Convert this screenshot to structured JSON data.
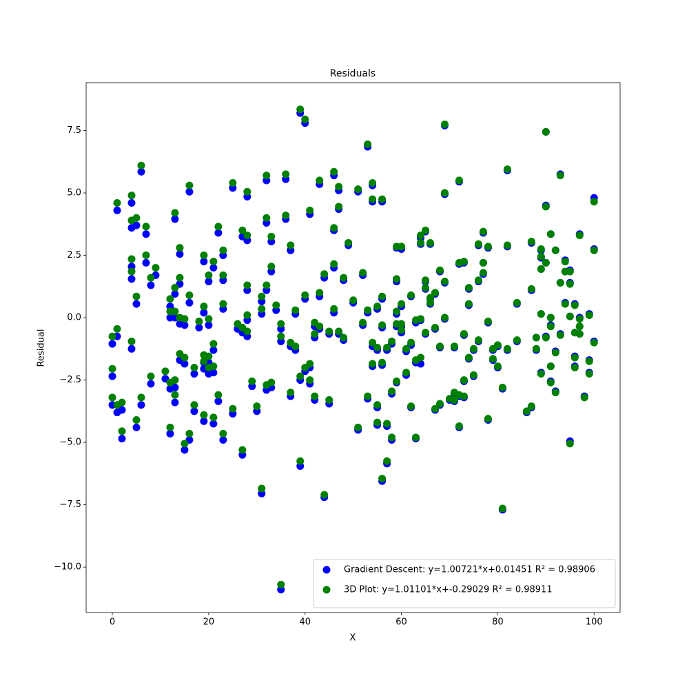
{
  "chart_data": {
    "type": "scatter",
    "title": "Residuals",
    "x_label": "X",
    "y_label": "Residual",
    "xlim": [
      -5.44,
      105.4
    ],
    "ylim": [
      -11.82,
      9.42
    ],
    "xticks": [
      0,
      20,
      40,
      60,
      80,
      100
    ],
    "yticks": [
      {
        "value": -10,
        "label": "−10.0"
      },
      {
        "value": -7.5,
        "label": "−7.5"
      },
      {
        "value": -5,
        "label": "−5.0"
      },
      {
        "value": -2.5,
        "label": "−2.5"
      },
      {
        "value": 0,
        "label": "0.0"
      },
      2.5,
      {
        "value": 5,
        "label": "5.0"
      },
      7.5
    ],
    "legend": "lower right",
    "x": [
      0,
      0,
      0,
      1,
      1,
      1,
      2,
      2,
      4,
      4,
      4,
      4,
      4,
      5,
      5,
      5,
      6,
      6,
      7,
      7,
      8,
      8,
      9,
      11,
      12,
      12,
      12,
      12,
      13,
      13,
      13,
      13,
      13,
      14,
      14,
      14,
      14,
      15,
      15,
      15,
      16,
      16,
      16,
      17,
      17,
      18,
      19,
      19,
      19,
      19,
      19,
      20,
      20,
      20,
      20,
      21,
      21,
      21,
      21,
      22,
      22,
      23,
      23,
      23,
      23,
      25,
      25,
      26,
      27,
      27,
      27,
      28,
      28,
      28,
      28,
      28,
      29,
      30,
      31,
      31,
      31,
      32,
      32,
      32,
      32,
      33,
      33,
      33,
      34,
      35,
      35,
      35,
      36,
      36,
      37,
      37,
      37,
      38,
      38,
      39,
      39,
      39,
      40,
      40,
      40,
      41,
      41,
      41,
      42,
      42,
      42,
      43,
      43,
      43,
      44,
      44,
      45,
      45,
      46,
      46,
      46,
      46,
      47,
      47,
      47,
      48,
      48,
      49,
      50,
      51,
      51,
      52,
      52,
      53,
      53,
      53,
      54,
      54,
      54,
      54,
      55,
      55,
      55,
      55,
      56,
      56,
      56,
      56,
      56,
      57,
      57,
      57,
      58,
      58,
      58,
      59,
      59,
      59,
      59,
      59,
      60,
      60,
      60,
      60,
      61,
      61,
      62,
      62,
      62,
      63,
      63,
      63,
      64,
      64,
      64,
      64,
      65,
      65,
      65,
      65,
      66,
      66,
      66,
      67,
      67,
      67,
      68,
      68,
      68,
      69,
      69,
      69,
      69,
      70,
      71,
      71,
      71,
      72,
      72,
      72,
      72,
      73,
      73,
      73,
      73,
      74,
      74,
      74,
      75,
      75,
      76,
      76,
      76,
      77,
      77,
      77,
      78,
      78,
      78,
      79,
      79,
      80,
      80,
      81,
      81,
      82,
      82,
      82,
      84,
      84,
      86,
      87,
      87,
      87,
      88,
      88,
      89,
      89,
      89,
      89,
      89,
      90,
      90,
      90,
      90,
      91,
      91,
      91,
      91,
      91,
      92,
      92,
      92,
      93,
      93,
      93,
      94,
      94,
      94,
      95,
      95,
      95,
      95,
      96,
      96,
      96,
      96,
      97,
      97,
      97,
      97,
      98,
      99,
      99,
      99,
      100,
      100,
      100
    ],
    "series": [
      {
        "name": "Gradient Descent: y=1.00721*x+0.01451 R² = 0.98906",
        "color": "#0000ff",
        "values": [
          -1.05,
          -2.35,
          -3.5,
          4.3,
          -0.75,
          -3.8,
          -3.7,
          -4.85,
          4.6,
          3.6,
          2.05,
          1.55,
          -1.25,
          3.7,
          0.55,
          -4.4,
          5.85,
          -3.5,
          3.35,
          2.2,
          1.3,
          -2.65,
          1.7,
          -2.45,
          0.45,
          0.0,
          -2.85,
          -4.65,
          3.95,
          0.95,
          0.0,
          -2.8,
          -3.4,
          2.55,
          1.35,
          -0.25,
          -1.7,
          -0.3,
          -1.85,
          -5.3,
          5.05,
          0.6,
          -4.9,
          -2.25,
          -3.75,
          -0.4,
          2.25,
          0.2,
          -1.8,
          -2.05,
          -4.15,
          1.45,
          -0.3,
          -2.25,
          -1.8,
          2.0,
          -1.3,
          -2.2,
          -4.25,
          3.4,
          -3.35,
          2.5,
          1.5,
          0.35,
          -4.9,
          5.2,
          -3.85,
          -0.45,
          3.25,
          -0.6,
          -5.5,
          4.85,
          3.1,
          1.1,
          -0.1,
          -0.75,
          -2.75,
          -3.75,
          0.65,
          0.15,
          -7.05,
          5.5,
          3.8,
          1.1,
          -2.9,
          3.05,
          1.85,
          -2.8,
          0.3,
          -0.45,
          -0.95,
          -10.9,
          5.55,
          3.95,
          2.7,
          -1.15,
          -3.15,
          0.15,
          -1.3,
          8.2,
          -2.5,
          -5.95,
          7.8,
          0.75,
          -2.15,
          4.15,
          -2.0,
          -2.65,
          -0.35,
          -0.8,
          -3.3,
          5.35,
          0.85,
          -0.45,
          1.6,
          -7.2,
          -0.65,
          -3.45,
          5.7,
          3.5,
          2.0,
          0.2,
          5.1,
          4.35,
          -0.65,
          1.5,
          -0.9,
          2.9,
          0.6,
          5.05,
          -4.5,
          1.7,
          -0.3,
          6.85,
          0.2,
          -3.25,
          5.3,
          4.65,
          -1.15,
          -1.95,
          0.35,
          -1.3,
          -3.6,
          -4.3,
          4.65,
          0.75,
          -0.4,
          -1.9,
          -6.55,
          -1.3,
          -4.35,
          -5.85,
          -1.05,
          -3.05,
          -4.9,
          2.8,
          1.45,
          0.15,
          -0.35,
          -2.6,
          2.75,
          0.45,
          -0.35,
          -0.6,
          -1.35,
          -2.3,
          0.85,
          -1.1,
          -3.6,
          -0.2,
          -1.8,
          -4.85,
          3.2,
          2.95,
          -0.1,
          -1.85,
          3.45,
          1.45,
          1.15,
          -0.65,
          2.95,
          0.75,
          0.55,
          0.95,
          -0.45,
          -3.7,
          1.85,
          -1.2,
          -3.5,
          7.7,
          4.95,
          1.4,
          -0.05,
          -3.3,
          -1.2,
          -3.05,
          -3.35,
          5.45,
          2.15,
          -3.15,
          -4.4,
          2.2,
          -0.7,
          -2.55,
          -3.2,
          1.15,
          0.5,
          -1.65,
          -1.3,
          -2.35,
          2.9,
          1.45,
          -0.95,
          3.4,
          2.2,
          1.75,
          2.8,
          -0.2,
          -4.1,
          -1.3,
          -1.7,
          -1.15,
          -2.0,
          -2.85,
          -7.7,
          5.9,
          2.85,
          -1.3,
          0.55,
          -0.95,
          -3.8,
          3.0,
          1.1,
          -3.6,
          -0.8,
          -1.3,
          2.7,
          2.4,
          1.95,
          0.15,
          -2.2,
          7.45,
          4.5,
          2.2,
          -0.75,
          3.35,
          0.0,
          -0.3,
          -1.95,
          -2.55,
          2.7,
          -1.35,
          -2.95,
          5.75,
          1.4,
          -0.65,
          2.3,
          1.85,
          0.6,
          1.9,
          1.4,
          0.05,
          -4.95,
          0.55,
          -0.6,
          -1.55,
          -1.95,
          3.35,
          0.0,
          -0.35,
          -0.65,
          -3.15,
          0.15,
          -1.7,
          -2.2,
          4.8,
          2.75,
          -0.95
        ]
      },
      {
        "name": "3D Plot: y=1.01101*x+-0.29029 R² = 0.98911",
        "color": "#008000",
        "values": [
          -0.75,
          -2.05,
          -3.2,
          4.6,
          -0.45,
          -3.5,
          -3.4,
          -4.55,
          4.9,
          3.9,
          2.35,
          1.85,
          -0.95,
          4.0,
          0.85,
          -4.1,
          6.1,
          -3.2,
          3.65,
          2.5,
          1.6,
          -2.35,
          2.0,
          -2.15,
          0.75,
          0.25,
          -2.6,
          -4.4,
          4.2,
          1.2,
          0.25,
          -2.5,
          -3.1,
          2.8,
          1.6,
          0.0,
          -1.45,
          -0.05,
          -1.6,
          -5.05,
          5.3,
          0.9,
          -4.65,
          -2.0,
          -3.5,
          -0.15,
          2.5,
          0.45,
          -1.5,
          -1.75,
          -3.9,
          1.7,
          -0.05,
          -2.0,
          -1.55,
          2.25,
          -1.05,
          -1.95,
          -4.0,
          3.65,
          -3.1,
          2.7,
          1.7,
          0.55,
          -4.65,
          5.4,
          -3.65,
          -0.25,
          3.5,
          -0.4,
          -5.3,
          5.05,
          3.3,
          1.3,
          0.1,
          -0.55,
          -2.55,
          -3.55,
          0.85,
          0.35,
          -6.85,
          5.7,
          4.0,
          1.3,
          -2.7,
          3.25,
          2.05,
          -2.6,
          0.5,
          -0.25,
          -0.75,
          -10.7,
          5.75,
          4.1,
          2.9,
          -1.0,
          -3.0,
          0.3,
          -1.15,
          8.35,
          -2.35,
          -5.75,
          7.95,
          0.9,
          -2.0,
          4.3,
          -1.85,
          -2.5,
          -0.2,
          -0.65,
          -3.15,
          5.5,
          1.0,
          -0.35,
          1.75,
          -7.1,
          -0.55,
          -3.3,
          5.85,
          3.6,
          2.15,
          0.35,
          5.25,
          4.45,
          -0.55,
          1.6,
          -0.8,
          3.0,
          0.7,
          5.15,
          -4.4,
          1.8,
          -0.2,
          6.95,
          0.3,
          -3.15,
          5.4,
          4.75,
          -1.0,
          -1.85,
          0.45,
          -1.2,
          -3.5,
          -4.2,
          4.75,
          0.85,
          -0.3,
          -1.8,
          -6.45,
          -1.2,
          -4.25,
          -5.75,
          -0.95,
          -2.95,
          -4.8,
          2.85,
          1.55,
          0.25,
          -0.25,
          -2.55,
          2.85,
          0.55,
          -0.25,
          -0.5,
          -1.25,
          -2.2,
          0.9,
          -1.0,
          -3.55,
          -0.1,
          -1.7,
          -4.8,
          3.3,
          3.0,
          -0.05,
          -1.6,
          3.5,
          1.5,
          1.2,
          -0.6,
          3.0,
          0.8,
          0.6,
          1.0,
          -0.4,
          -3.65,
          1.9,
          -1.15,
          -3.45,
          7.75,
          5.0,
          1.45,
          0.0,
          -3.25,
          -1.15,
          -3.0,
          -3.3,
          5.5,
          2.2,
          -3.1,
          -4.35,
          2.25,
          -0.65,
          -2.5,
          -3.15,
          1.2,
          0.55,
          -1.6,
          -1.25,
          -2.3,
          2.95,
          1.5,
          -0.9,
          3.45,
          2.2,
          1.8,
          2.85,
          -0.15,
          -4.05,
          -1.25,
          -1.65,
          -1.1,
          -1.95,
          -2.8,
          -7.65,
          5.95,
          2.9,
          -1.25,
          0.6,
          -0.9,
          -3.75,
          3.05,
          1.15,
          -3.55,
          -0.8,
          -1.25,
          2.75,
          2.45,
          1.95,
          0.15,
          -2.25,
          7.45,
          4.45,
          2.2,
          -0.8,
          3.35,
          0.0,
          -0.35,
          -1.95,
          -2.6,
          2.7,
          -1.4,
          -3.0,
          5.7,
          1.4,
          -0.7,
          2.25,
          1.85,
          0.55,
          1.85,
          1.35,
          0.05,
          -5.05,
          0.5,
          -0.6,
          -1.6,
          -2.0,
          3.3,
          -0.05,
          -0.35,
          -0.65,
          -3.2,
          0.1,
          -1.75,
          -2.25,
          4.65,
          2.7,
          -1.0
        ]
      }
    ]
  }
}
